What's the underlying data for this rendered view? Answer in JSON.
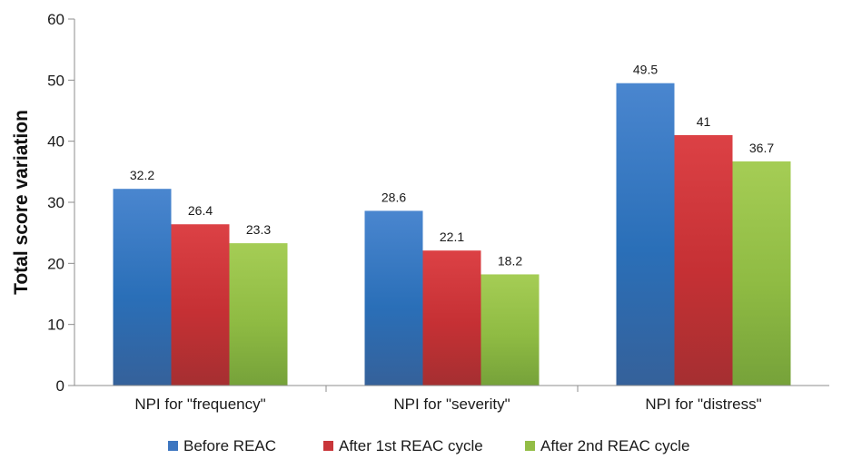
{
  "chart_data": {
    "type": "bar",
    "title": "",
    "xlabel": "",
    "ylabel": "Total score variation",
    "ylim": [
      0,
      60
    ],
    "yticks": [
      0,
      10,
      20,
      30,
      40,
      50,
      60
    ],
    "grid": false,
    "legend_position": "bottom",
    "categories": [
      "NPI for \"frequency\"",
      "NPI for \"severity\"",
      "NPI for \"distress\""
    ],
    "series": [
      {
        "name": "Before REAC",
        "color": "#3d76c0",
        "values": [
          32.2,
          28.6,
          49.5
        ],
        "labels": [
          "32.2",
          "28.6",
          "49.5"
        ]
      },
      {
        "name": "After 1st REAC cycle",
        "color": "#c9363a",
        "values": [
          26.4,
          22.1,
          41
        ],
        "labels": [
          "26.4",
          "22.1",
          "41"
        ]
      },
      {
        "name": "After 2nd REAC cycle",
        "color": "#93bd46",
        "values": [
          23.3,
          18.2,
          36.7
        ],
        "labels": [
          "23.3",
          "18.2",
          "36.7"
        ]
      }
    ]
  }
}
